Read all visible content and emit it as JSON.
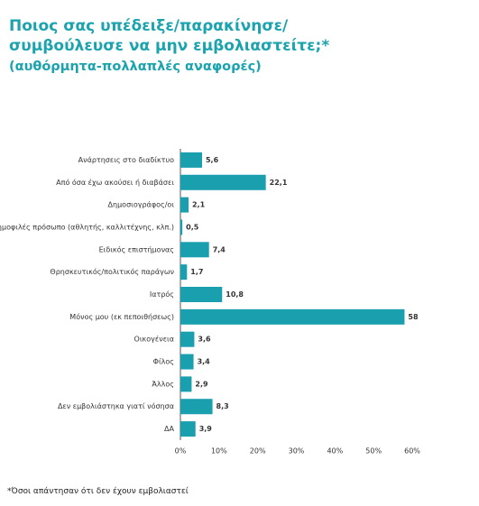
{
  "chart_data": {
    "type": "bar",
    "orientation": "horizontal",
    "title": "Ποιος σας υπέδειξε/παρακίνησε/συμβούλευσε να μην εμβολιαστείτε;*",
    "subtitle": "(αυθόρμητα-πολλαπλές αναφορές)",
    "categories": [
      "Ανάρτησεις στο διαδίκτυο",
      "Από όσα έχω ακούσει ή διαβάσει",
      "Δημοσιογράφος/οι",
      "Δημοφιλές πρόσωπο (αθλητής, καλλιτέχνης, κλπ.)",
      "Ειδικός επιστήμονας",
      "Θρησκευτικός/πολιτικός παράγων",
      "Ιατρός",
      "Μόνος μου (εκ πεποιθήσεως)",
      "Οικογένεια",
      "Φίλος",
      "Άλλος",
      "Δεν εμβολιάστηκα γιατί νόσησα",
      "ΔΑ"
    ],
    "values": [
      5.6,
      22.1,
      2.1,
      0.5,
      7.4,
      1.7,
      10.8,
      58,
      3.6,
      3.4,
      2.9,
      8.3,
      3.9
    ],
    "value_labels": [
      "5,6",
      "22,1",
      "2,1",
      "0,5",
      "7,4",
      "1,7",
      "10,8",
      "58",
      "3,6",
      "3,4",
      "2,9",
      "8,3",
      "3,9"
    ],
    "color": "#1a9fae",
    "xlim": [
      0,
      60
    ],
    "xticks": [
      {
        "value": 0,
        "label": "0%"
      },
      {
        "value": 10,
        "label": "10%"
      },
      {
        "value": 20,
        "label": "20%"
      },
      {
        "value": 30,
        "label": "30%"
      },
      {
        "value": 40,
        "label": "40%"
      },
      {
        "value": 50,
        "label": "50%"
      },
      {
        "value": 60,
        "label": "60%"
      }
    ],
    "grid": false,
    "footnote": "*Όσοι απάντησαν ότι δεν έχουν εμβολιαστεί"
  }
}
